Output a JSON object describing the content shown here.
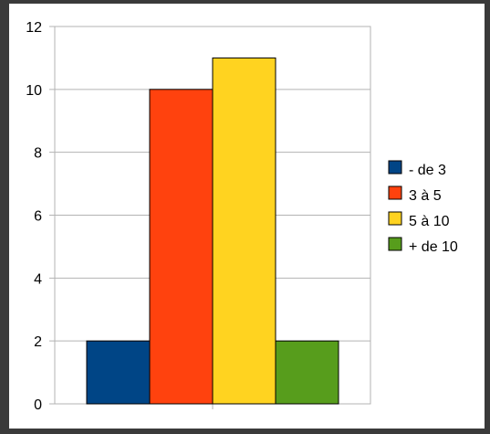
{
  "chart_data": {
    "type": "bar",
    "title": "",
    "xlabel": "",
    "ylabel": "",
    "categories": [
      ""
    ],
    "series": [
      {
        "name": "- de 3",
        "values": [
          2
        ],
        "color": "#004586"
      },
      {
        "name": "3 à 5",
        "values": [
          10
        ],
        "color": "#ff420e"
      },
      {
        "name": "5 à 10",
        "values": [
          11
        ],
        "color": "#ffd320"
      },
      {
        "name": "+ de 10",
        "values": [
          2
        ],
        "color": "#579d1c"
      }
    ],
    "ylim": [
      0,
      12
    ],
    "yticks": [
      0,
      2,
      4,
      6,
      8,
      10,
      12
    ],
    "grid": true,
    "legend": "right",
    "colors": {
      "gridline": "#b3b3b3",
      "bar_outline": "#000000",
      "background": "#ffffff",
      "border": "#3a3a3a"
    }
  }
}
